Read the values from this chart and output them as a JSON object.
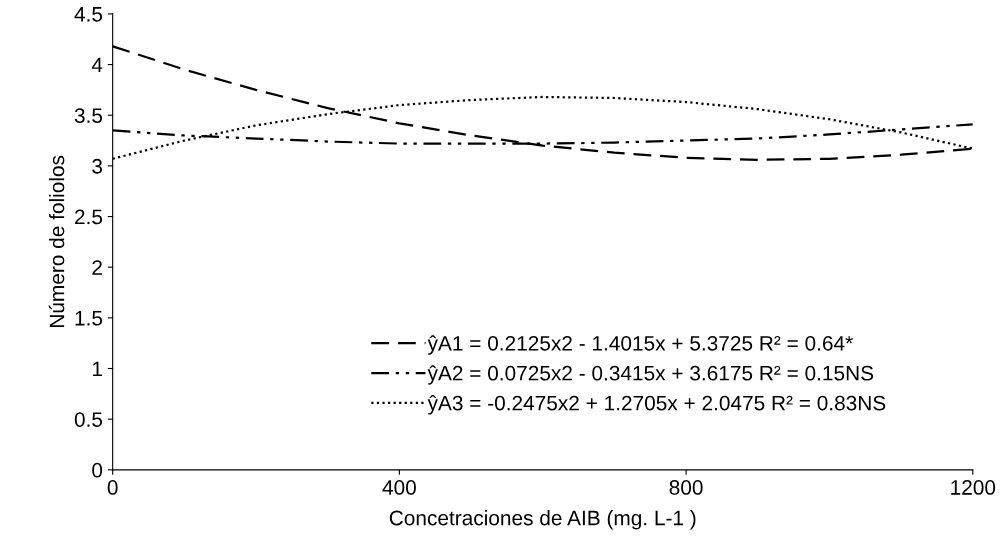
{
  "chart_data": {
    "type": "line",
    "xlabel": "Concetraciones de AIB (mg. L-1 )",
    "ylabel": "Número de foliolos",
    "x": [
      0,
      100,
      200,
      300,
      400,
      500,
      600,
      700,
      800,
      900,
      1000,
      1100,
      1200
    ],
    "series": [
      {
        "name": "ŷA1 = 0.2125x2 - 1.4015x + 5.3725 R² = 0.64*",
        "color": "#000000",
        "line_style": "dashed",
        "values": [
          4.18,
          3.95,
          3.75,
          3.57,
          3.42,
          3.3,
          3.2,
          3.13,
          3.08,
          3.06,
          3.07,
          3.11,
          3.17
        ]
      },
      {
        "name": "ŷA2 = 0.0725x2 - 0.3415x + 3.6175 R² = 0.15NS",
        "color": "#000000",
        "line_style": "dashdotdot",
        "values": [
          3.35,
          3.3,
          3.27,
          3.24,
          3.22,
          3.22,
          3.22,
          3.23,
          3.25,
          3.27,
          3.31,
          3.36,
          3.41
        ]
      },
      {
        "name": "ŷA3 = -0.2475x2 + 1.2705x + 2.0475 R² = 0.83NS",
        "color": "#000000",
        "line_style": "dotted",
        "values": [
          3.07,
          3.25,
          3.4,
          3.51,
          3.6,
          3.65,
          3.68,
          3.67,
          3.63,
          3.56,
          3.46,
          3.33,
          3.17
        ]
      }
    ],
    "xlim": [
      0,
      1200
    ],
    "xticks": [
      0,
      400,
      800,
      1200
    ],
    "ylim": [
      0,
      4.5
    ],
    "yticks": [
      0,
      0.5,
      1,
      1.5,
      2,
      2.5,
      3,
      3.5,
      4,
      4.5
    ],
    "grid": false,
    "legend": "bottom",
    "marker": "none"
  }
}
